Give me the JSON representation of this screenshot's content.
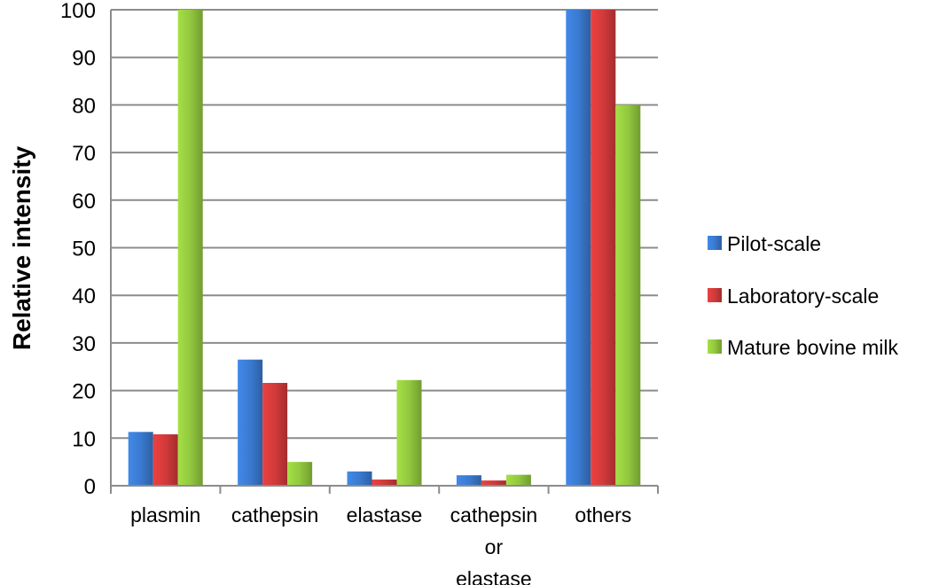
{
  "chart_data": {
    "type": "bar",
    "categories": [
      [
        "plasmin"
      ],
      [
        "cathepsin"
      ],
      [
        "elastase"
      ],
      [
        "cathepsin",
        "or",
        "elastase"
      ],
      [
        "others"
      ]
    ],
    "series": [
      {
        "name": "Pilot-scale",
        "color": "#3a7ad0",
        "values": [
          11.3,
          26.5,
          3,
          2.2,
          100
        ]
      },
      {
        "name": "Laboratory-scale",
        "color": "#d23a3a",
        "values": [
          10.8,
          21.6,
          1.3,
          1.1,
          100
        ]
      },
      {
        "name": "Mature bovine milk",
        "color": "#92c83e",
        "values": [
          100,
          5,
          22.2,
          2.3,
          80
        ]
      }
    ],
    "ylabel": "Relative intensity",
    "ylim": [
      0,
      100
    ],
    "yticks": [
      0,
      10,
      20,
      30,
      40,
      50,
      60,
      70,
      80,
      90,
      100
    ],
    "grid": true,
    "legend_position": "right"
  }
}
